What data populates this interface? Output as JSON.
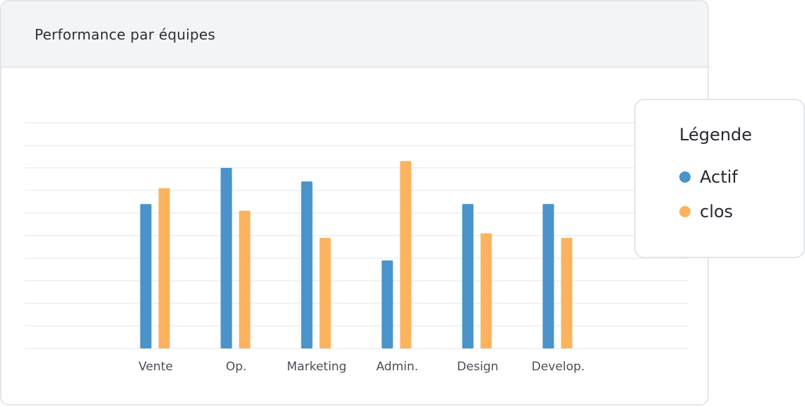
{
  "card": {
    "title": "Performance par équipes"
  },
  "legend": {
    "title": "Légende",
    "items": [
      {
        "label": "Actif",
        "color": "#4a93cb"
      },
      {
        "label": "clos",
        "color": "#fbb35f"
      }
    ]
  },
  "chart_data": {
    "type": "bar",
    "categories": [
      "Vente",
      "Op.",
      "Marketing",
      "Admin.",
      "Design",
      "Develop."
    ],
    "series": [
      {
        "name": "Actif",
        "color": "#4a93cb",
        "values": [
          6.4,
          8.0,
          7.4,
          3.9,
          6.4,
          6.4
        ]
      },
      {
        "name": "clos",
        "color": "#fbb35f",
        "values": [
          7.1,
          6.1,
          4.9,
          8.3,
          5.1,
          4.9
        ]
      }
    ],
    "ylim": [
      0,
      10
    ],
    "grid": true,
    "legend_position": "right"
  }
}
